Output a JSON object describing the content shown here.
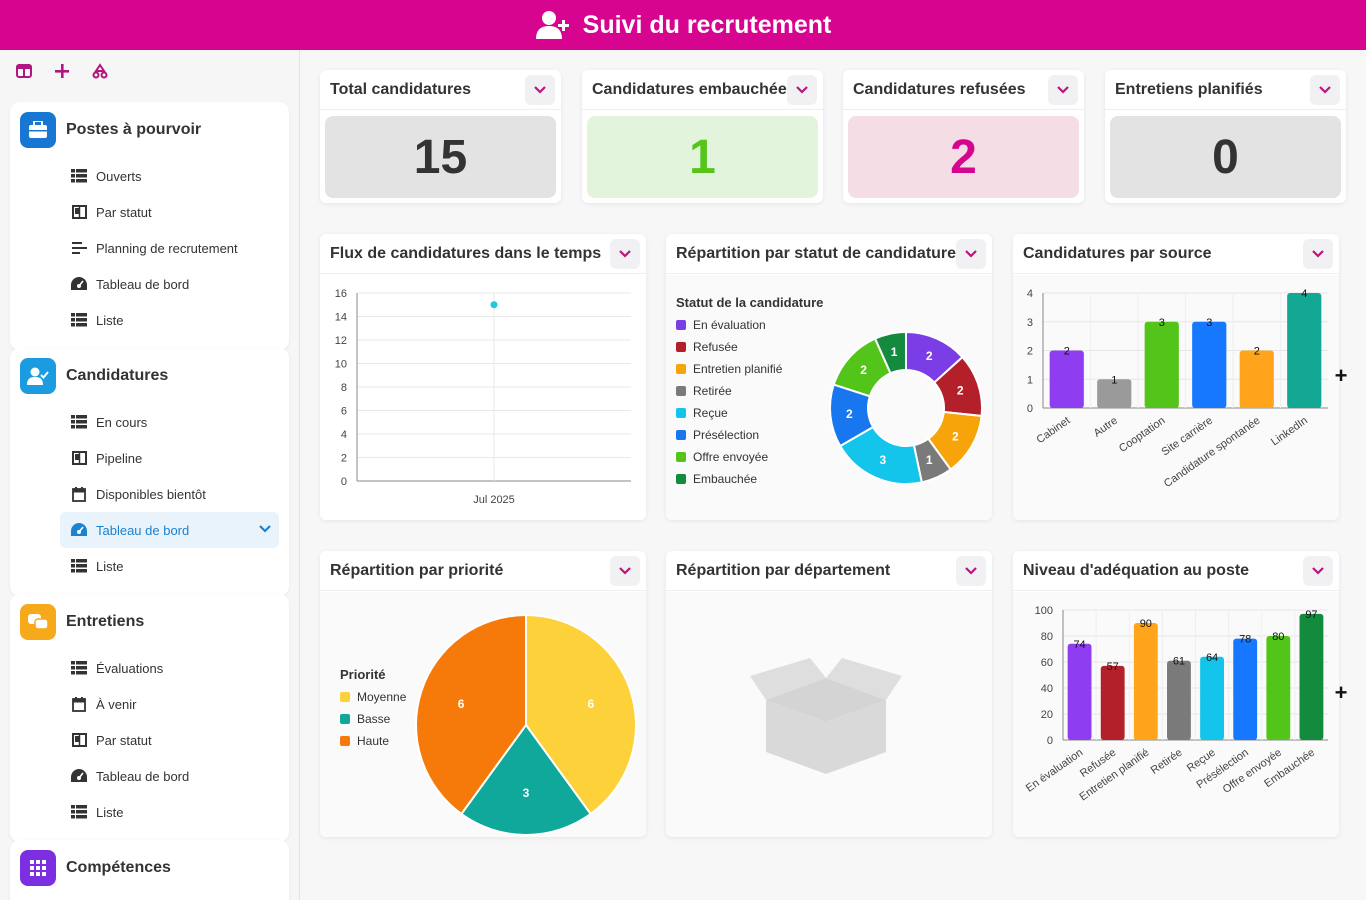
{
  "app": {
    "title": "Suivi du recrutement"
  },
  "sidebar": {
    "groups": [
      {
        "title": "Postes à pourvoir",
        "color": "#1877d3",
        "items": [
          {
            "label": "Ouverts",
            "icon": "list-icon"
          },
          {
            "label": "Par statut",
            "icon": "kanban-icon"
          },
          {
            "label": "Planning de recrutement",
            "icon": "gantt-icon"
          },
          {
            "label": "Tableau de bord",
            "icon": "dashboard-icon"
          },
          {
            "label": "Liste",
            "icon": "list-icon"
          }
        ]
      },
      {
        "title": "Candidatures",
        "color": "#1b9be0",
        "items": [
          {
            "label": "En cours",
            "icon": "list-icon"
          },
          {
            "label": "Pipeline",
            "icon": "kanban-icon"
          },
          {
            "label": "Disponibles bientôt",
            "icon": "calendar-icon"
          },
          {
            "label": "Tableau de bord",
            "icon": "dashboard-icon",
            "active": true
          },
          {
            "label": "Liste",
            "icon": "list-icon"
          }
        ]
      },
      {
        "title": "Entretiens",
        "color": "#f6a91b",
        "items": [
          {
            "label": "Évaluations",
            "icon": "list-icon"
          },
          {
            "label": "À venir",
            "icon": "calendar-icon"
          },
          {
            "label": "Par statut",
            "icon": "kanban-icon"
          },
          {
            "label": "Tableau de bord",
            "icon": "dashboard-icon"
          },
          {
            "label": "Liste",
            "icon": "list-icon"
          }
        ]
      },
      {
        "title": "Compétences",
        "color": "#7b2fe0",
        "items": []
      }
    ]
  },
  "kpis": [
    {
      "label": "Total candidatures",
      "value": "15",
      "bg": "#e3e3e3",
      "fg": "#333333"
    },
    {
      "label": "Candidatures embauchées",
      "value": "1",
      "bg": "#e2f5dc",
      "fg": "#55c51a"
    },
    {
      "label": "Candidatures refusées",
      "value": "2",
      "bg": "#f5dde6",
      "fg": "#d6048f"
    },
    {
      "label": "Entretiens planifiés",
      "value": "0",
      "bg": "#e3e3e3",
      "fg": "#333333"
    }
  ],
  "cards": {
    "flux": {
      "title": "Flux de candidatures dans le temps"
    },
    "statut": {
      "title": "Répartition par statut de candidature"
    },
    "source": {
      "title": "Candidatures par source"
    },
    "priorite": {
      "title": "Répartition par priorité"
    },
    "departement": {
      "title": "Répartition par département"
    },
    "adequation": {
      "title": "Niveau d'adéquation au poste"
    }
  },
  "chart_data": [
    {
      "id": "flux",
      "type": "line",
      "x": [
        "Jul 2025"
      ],
      "values": [
        15
      ],
      "yticks": [
        "0",
        "2",
        "4",
        "6",
        "8",
        "10",
        "12",
        "14",
        "16"
      ],
      "ylim": [
        0,
        16
      ],
      "grid": true,
      "color": "#1ec8e0"
    },
    {
      "id": "statut",
      "type": "pie",
      "donut": true,
      "legend_title": "Statut de la candidature",
      "legend_position": "left",
      "slices": [
        {
          "label": "En évaluation",
          "value": 2,
          "color": "#7b3ee6"
        },
        {
          "label": "Refusée",
          "value": 2,
          "color": "#b3202a"
        },
        {
          "label": "Entretien planifié",
          "value": 2,
          "color": "#f7a30a"
        },
        {
          "label": "Retirée",
          "value": 1,
          "color": "#7a7a7a"
        },
        {
          "label": "Reçue",
          "value": 3,
          "color": "#13c5ea"
        },
        {
          "label": "Présélection",
          "value": 2,
          "color": "#1876ee"
        },
        {
          "label": "Offre envoyée",
          "value": 2,
          "color": "#52c41a"
        },
        {
          "label": "Embauchée",
          "value": 1,
          "color": "#138a3e"
        }
      ]
    },
    {
      "id": "source",
      "type": "bar",
      "categories": [
        "Cabinet",
        "Autre",
        "Cooptation",
        "Site carrière",
        "Candidature spontanée",
        "LinkedIn"
      ],
      "values": [
        2,
        1,
        3,
        3,
        2,
        4
      ],
      "colors": [
        "#8e3ef0",
        "#9a9a9a",
        "#52c41a",
        "#1677ff",
        "#ffa41b",
        "#13a894"
      ],
      "yticks": [
        "0",
        "1",
        "2",
        "3",
        "4"
      ],
      "ylim": [
        0,
        4
      ]
    },
    {
      "id": "priorite",
      "type": "pie",
      "legend_title": "Priorité",
      "legend_position": "left",
      "slices": [
        {
          "label": "Moyenne",
          "value": 6,
          "color": "#fdd13a"
        },
        {
          "label": "Basse",
          "value": 3,
          "color": "#0fa89a"
        },
        {
          "label": "Haute",
          "value": 6,
          "color": "#f57a0a"
        }
      ]
    },
    {
      "id": "adequation",
      "type": "bar",
      "categories": [
        "En évaluation",
        "Refusée",
        "Entretien planifié",
        "Retirée",
        "Reçue",
        "Présélection",
        "Offre envoyée",
        "Embauchée"
      ],
      "values": [
        74,
        57,
        90,
        61,
        64,
        78,
        80,
        97
      ],
      "colors": [
        "#8e3ef0",
        "#b3202a",
        "#ffa41b",
        "#7a7a7a",
        "#13c5ea",
        "#1677ff",
        "#52c41a",
        "#138a3e"
      ],
      "yticks": [
        "0",
        "20",
        "40",
        "60",
        "80",
        "100"
      ],
      "ylim": [
        0,
        100
      ]
    }
  ]
}
